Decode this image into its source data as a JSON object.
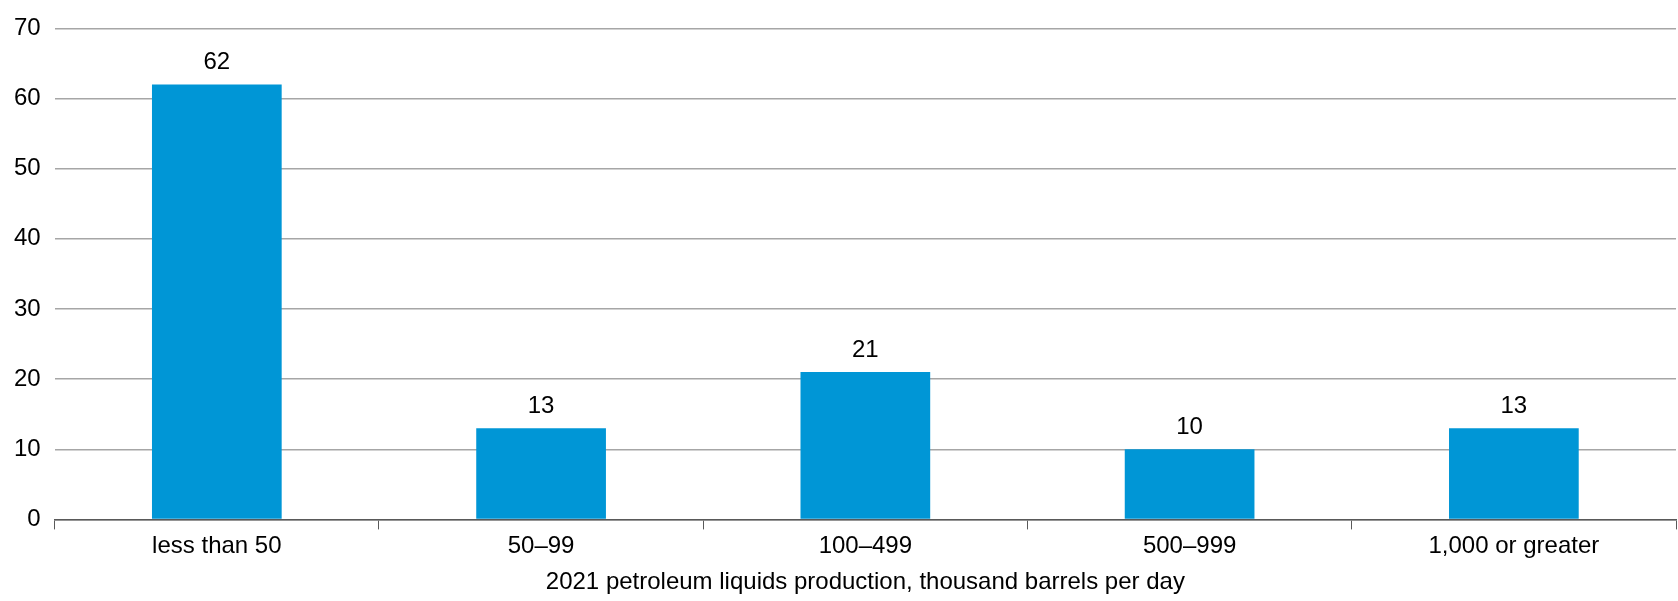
{
  "chart_data": {
    "type": "bar",
    "xlabel": "2021 petroleum liquids production, thousand barrels per day",
    "categories": [
      "less than 50",
      "50–99",
      "100–499",
      "500–999",
      "1,000 or greater"
    ],
    "values": [
      62,
      13,
      21,
      10,
      13
    ],
    "color": "#0096d6",
    "ylim": [
      0,
      70
    ],
    "yticks": [
      0,
      10,
      20,
      30,
      40,
      50,
      60,
      70
    ],
    "grid": "y",
    "data_labels": true
  }
}
